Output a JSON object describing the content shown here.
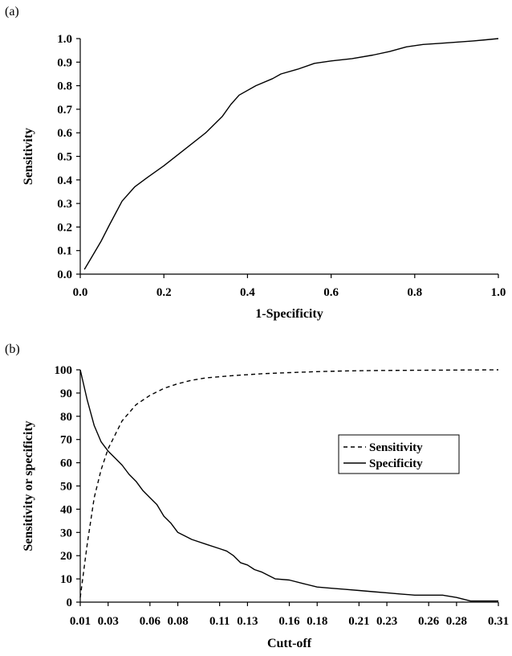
{
  "panels": {
    "a_label": "(a)",
    "b_label": "(b)"
  },
  "chart_data": [
    {
      "type": "line",
      "title": "",
      "xlabel": "1-Specificity",
      "ylabel": "Sensitivity",
      "xlim": [
        0,
        1
      ],
      "ylim": [
        0,
        1
      ],
      "x_ticks": [
        0,
        0.2,
        0.4,
        0.6,
        0.8,
        1.0
      ],
      "x_tick_labels": [
        "0.0",
        "0.2",
        "0.4",
        "0.6",
        "0.8",
        "1.0"
      ],
      "y_ticks": [
        0,
        0.1,
        0.2,
        0.3,
        0.4,
        0.5,
        0.6,
        0.7,
        0.8,
        0.9,
        1.0
      ],
      "y_tick_labels": [
        "0.0",
        "0.1",
        "0.2",
        "0.3",
        "0.4",
        "0.5",
        "0.6",
        "0.7",
        "0.8",
        "0.9",
        "1.0"
      ],
      "grid": false,
      "series": [
        {
          "x": [
            0.01,
            0.03,
            0.05,
            0.07,
            0.1,
            0.13,
            0.16,
            0.2,
            0.25,
            0.3,
            0.34,
            0.36,
            0.38,
            0.42,
            0.46,
            0.48,
            0.52,
            0.56,
            0.6,
            0.65,
            0.7,
            0.74,
            0.78,
            0.82,
            0.86,
            0.9,
            0.94,
            0.97,
            1.0
          ],
          "y": [
            0.02,
            0.08,
            0.14,
            0.21,
            0.31,
            0.37,
            0.41,
            0.46,
            0.53,
            0.6,
            0.67,
            0.72,
            0.76,
            0.8,
            0.83,
            0.85,
            0.87,
            0.895,
            0.905,
            0.915,
            0.93,
            0.945,
            0.965,
            0.975,
            0.98,
            0.985,
            0.99,
            0.995,
            1.0
          ],
          "style": "solid",
          "color": "#000000"
        }
      ]
    },
    {
      "type": "line",
      "title": "",
      "xlabel": "Cutt-off",
      "ylabel": "Sensitivity or specificity",
      "xlim": [
        0.01,
        0.31
      ],
      "ylim": [
        0,
        100
      ],
      "x_ticks": [
        0.01,
        0.03,
        0.06,
        0.08,
        0.11,
        0.13,
        0.16,
        0.18,
        0.21,
        0.23,
        0.26,
        0.28,
        0.31
      ],
      "x_tick_labels": [
        "0.01",
        "0.03",
        "0.06",
        "0.08",
        "0.11",
        "0.13",
        "0.16",
        "0.18",
        "0.21",
        "0.23",
        "0.26",
        "0.28",
        "0.31"
      ],
      "y_ticks": [
        0,
        10,
        20,
        30,
        40,
        50,
        60,
        70,
        80,
        90,
        100
      ],
      "y_tick_labels": [
        "0",
        "10",
        "20",
        "30",
        "40",
        "50",
        "60",
        "70",
        "80",
        "90",
        "100"
      ],
      "grid": false,
      "legend": {
        "placement": "right",
        "items": [
          "Sensitivity",
          "Specificity"
        ]
      },
      "series": [
        {
          "name": "Sensitivity",
          "style": "dashed",
          "color": "#000000",
          "x": [
            0.01,
            0.015,
            0.02,
            0.025,
            0.03,
            0.035,
            0.04,
            0.05,
            0.06,
            0.07,
            0.08,
            0.09,
            0.1,
            0.12,
            0.14,
            0.16,
            0.18,
            0.2,
            0.22,
            0.25,
            0.28,
            0.31
          ],
          "y": [
            2,
            25,
            45,
            57,
            66,
            72,
            78,
            85,
            89,
            92,
            94,
            95.5,
            96.5,
            97.5,
            98.3,
            98.8,
            99.2,
            99.5,
            99.7,
            99.8,
            99.9,
            100
          ]
        },
        {
          "name": "Specificity",
          "style": "solid",
          "color": "#000000",
          "x": [
            0.01,
            0.015,
            0.02,
            0.025,
            0.03,
            0.035,
            0.04,
            0.045,
            0.05,
            0.055,
            0.06,
            0.065,
            0.07,
            0.075,
            0.08,
            0.085,
            0.09,
            0.1,
            0.11,
            0.115,
            0.12,
            0.125,
            0.13,
            0.135,
            0.14,
            0.15,
            0.16,
            0.17,
            0.18,
            0.19,
            0.2,
            0.21,
            0.22,
            0.23,
            0.24,
            0.25,
            0.26,
            0.27,
            0.28,
            0.29,
            0.3,
            0.31
          ],
          "y": [
            100,
            87,
            76,
            69,
            65,
            62,
            59,
            55,
            52,
            48,
            45,
            42,
            37,
            34,
            30,
            28.5,
            27,
            25,
            23,
            22,
            20,
            17,
            16,
            14,
            13,
            10,
            9.5,
            8,
            6.5,
            6,
            5.5,
            5,
            4.5,
            4,
            3.5,
            3,
            3,
            3,
            2,
            0.5,
            0.5,
            0.5
          ]
        }
      ]
    }
  ]
}
